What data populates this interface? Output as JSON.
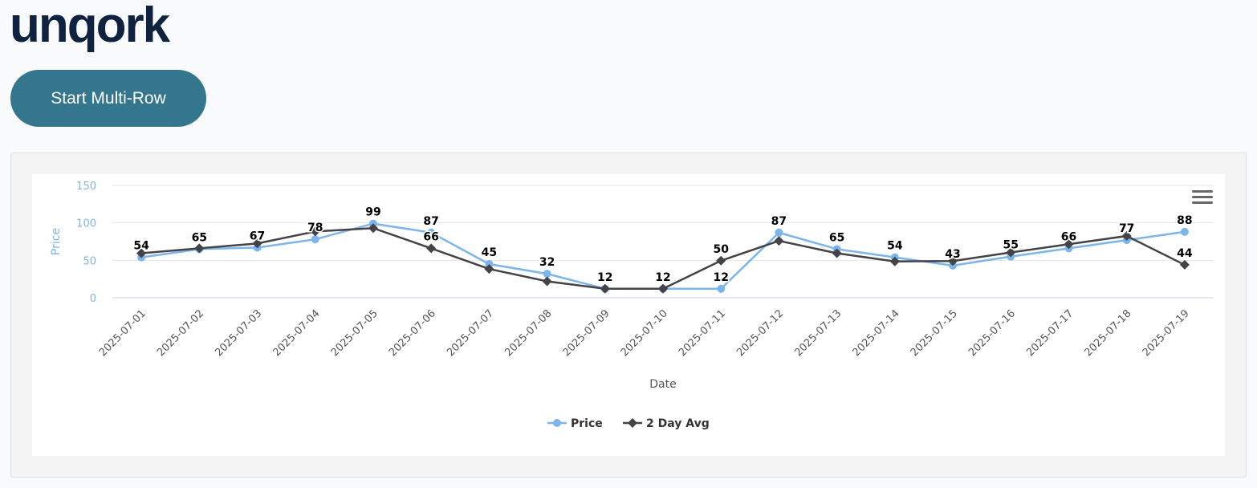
{
  "header": {
    "logo": "unqork",
    "button_label": "Start Multi-Row"
  },
  "colors": {
    "price": "#7cb5ec",
    "avg": "#434348",
    "button": "#33768d",
    "logo": "#0f2340"
  },
  "chart_menu_icon": "hamburger-menu-icon",
  "chart_data": {
    "type": "line",
    "title": "",
    "xlabel": "Date",
    "ylabel": "Price",
    "ylim": [
      0,
      150
    ],
    "yticks": [
      0,
      50,
      100,
      150
    ],
    "grid": true,
    "legend_placement": "bottom-center",
    "categories": [
      "2025-07-01",
      "2025-07-02",
      "2025-07-03",
      "2025-07-04",
      "2025-07-05",
      "2025-07-06",
      "2025-07-07",
      "2025-07-08",
      "2025-07-09",
      "2025-07-10",
      "2025-07-11",
      "2025-07-12",
      "2025-07-13",
      "2025-07-14",
      "2025-07-15",
      "2025-07-16",
      "2025-07-17",
      "2025-07-18",
      "2025-07-19"
    ],
    "series": [
      {
        "name": "Price",
        "marker": "circle",
        "values": [
          54,
          65,
          67,
          78,
          99,
          87,
          45,
          32,
          12,
          12,
          12,
          87,
          65,
          54,
          43,
          55,
          66,
          77,
          88
        ],
        "labels": [
          "54",
          "65",
          "67",
          "78",
          "99",
          "87",
          "45",
          "32",
          "12",
          "12",
          "12",
          "87",
          "65",
          "54",
          "43",
          "55",
          "66",
          "77",
          "88"
        ]
      },
      {
        "name": "2 Day Avg",
        "marker": "diamond",
        "values": [
          59.5,
          66,
          72.5,
          88.5,
          93,
          66,
          38.5,
          22,
          12,
          12,
          49.5,
          76,
          59.5,
          48.5,
          49,
          60.5,
          71.5,
          82.5,
          44
        ],
        "labels": [
          null,
          null,
          null,
          null,
          null,
          "66",
          null,
          null,
          null,
          null,
          "50",
          null,
          null,
          null,
          null,
          null,
          null,
          null,
          "44"
        ]
      }
    ]
  }
}
